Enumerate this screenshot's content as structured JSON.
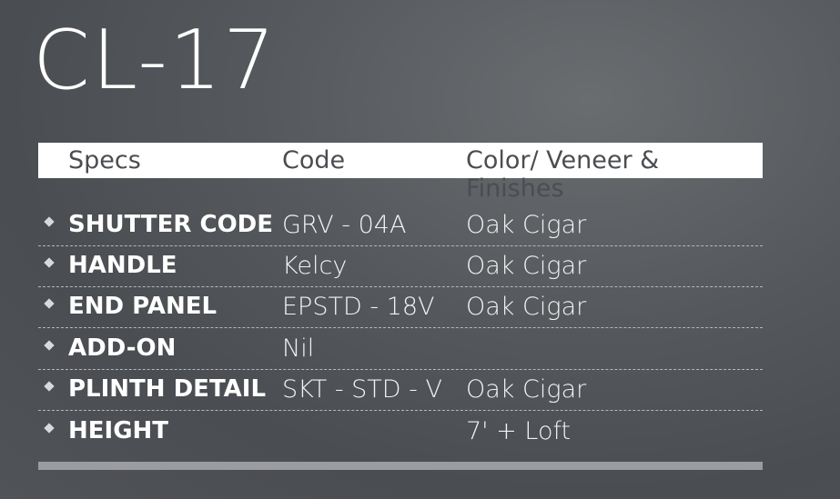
{
  "title": "CL-17",
  "header": {
    "specs": "Specs",
    "code": "Code",
    "color": "Color/ Veneer & Finishes"
  },
  "rows": [
    {
      "spec": "SHUTTER CODE",
      "code": "GRV - 04A",
      "color": "Oak Cigar"
    },
    {
      "spec": "HANDLE",
      "code": "Kelcy",
      "color": "Oak Cigar"
    },
    {
      "spec": "END PANEL",
      "code": "EPSTD - 18V",
      "color": "Oak Cigar"
    },
    {
      "spec": "ADD-ON",
      "code": "Nil",
      "color": ""
    },
    {
      "spec": "PLINTH DETAIL",
      "code": "SKT - STD - V",
      "color": "Oak Cigar"
    },
    {
      "spec": "HEIGHT",
      "code": "",
      "color": "7' + Loft"
    }
  ]
}
